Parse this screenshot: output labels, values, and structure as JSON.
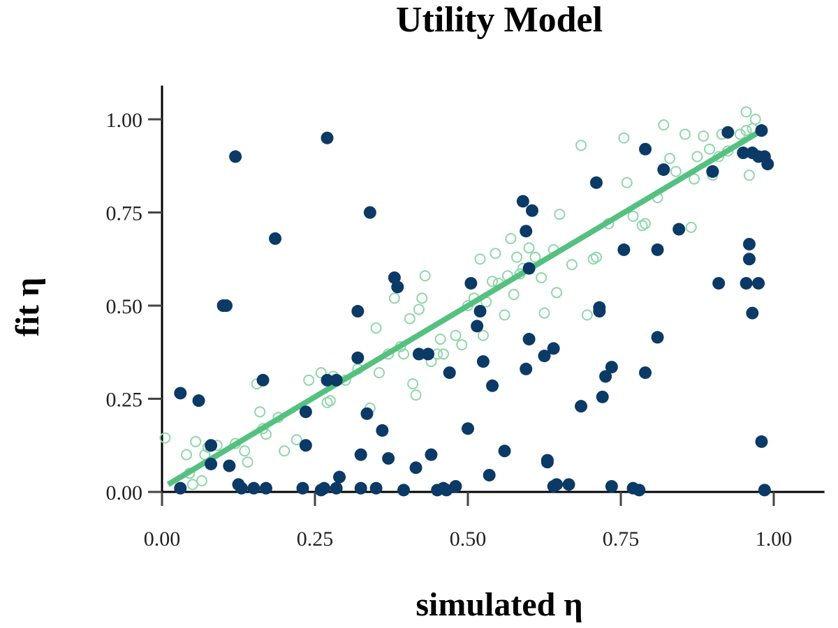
{
  "chart_data": {
    "type": "scatter",
    "title": "Utility Model",
    "xlabel": "simulated η",
    "ylabel": "fit η",
    "xlim": [
      0,
      1.1
    ],
    "ylim": [
      0,
      1.1
    ],
    "xticks": [
      0.0,
      0.25,
      0.5,
      0.75,
      1.0
    ],
    "yticks": [
      0.0,
      0.25,
      0.5,
      0.75,
      1.0
    ],
    "xtick_labels": [
      "0.00",
      "0.25",
      "0.50",
      "0.75",
      "1.00"
    ],
    "ytick_labels": [
      "0.00",
      "0.25",
      "0.50",
      "0.75",
      "1.00"
    ],
    "grid": false,
    "colors": {
      "filled": "#0b3a66",
      "hollow": "#8fd6aa",
      "fit_line": "#55c080",
      "axis": "#000000"
    },
    "fit_line": {
      "x": [
        0.01,
        0.975
      ],
      "y": [
        0.02,
        0.965
      ]
    },
    "series": [
      {
        "marker": "filled",
        "x": [
          0.03,
          0.03,
          0.06,
          0.08,
          0.08,
          0.11,
          0.1,
          0.105,
          0.12,
          0.125,
          0.13,
          0.15,
          0.17,
          0.165,
          0.185,
          0.23,
          0.235,
          0.235,
          0.26,
          0.265,
          0.27,
          0.27,
          0.285,
          0.29,
          0.285,
          0.32,
          0.32,
          0.325,
          0.335,
          0.325,
          0.34,
          0.35,
          0.36,
          0.37,
          0.38,
          0.385,
          0.395,
          0.415,
          0.42,
          0.435,
          0.44,
          0.45,
          0.46,
          0.465,
          0.47,
          0.48,
          0.5,
          0.505,
          0.515,
          0.52,
          0.525,
          0.535,
          0.54,
          0.56,
          0.59,
          0.595,
          0.595,
          0.6,
          0.605,
          0.6,
          0.625,
          0.63,
          0.63,
          0.64,
          0.64,
          0.645,
          0.665,
          0.685,
          0.71,
          0.715,
          0.715,
          0.72,
          0.725,
          0.735,
          0.735,
          0.755,
          0.77,
          0.78,
          0.79,
          0.79,
          0.81,
          0.81,
          0.82,
          0.845,
          0.9,
          0.9,
          0.91,
          0.925,
          0.95,
          0.955,
          0.96,
          0.96,
          0.965,
          0.965,
          0.975,
          0.975,
          0.98,
          0.98,
          0.985,
          0.985,
          0.99
        ],
        "y": [
          0.265,
          0.01,
          0.245,
          0.125,
          0.075,
          0.07,
          0.5,
          0.5,
          0.9,
          0.02,
          0.01,
          0.01,
          0.01,
          0.3,
          0.68,
          0.01,
          0.215,
          0.125,
          0.005,
          0.01,
          0.95,
          0.3,
          0.3,
          0.04,
          0.01,
          0.36,
          0.485,
          0.1,
          0.21,
          0.01,
          0.75,
          0.01,
          0.165,
          0.09,
          0.575,
          0.55,
          0.005,
          0.065,
          0.37,
          0.37,
          0.1,
          0.005,
          0.01,
          0.005,
          0.32,
          0.015,
          0.17,
          0.56,
          0.445,
          0.485,
          0.35,
          0.045,
          0.285,
          0.11,
          0.78,
          0.7,
          0.33,
          0.41,
          0.755,
          0.6,
          0.365,
          0.08,
          0.085,
          0.385,
          0.015,
          0.02,
          0.02,
          0.23,
          0.83,
          0.485,
          0.495,
          0.255,
          0.31,
          0.015,
          0.335,
          0.65,
          0.01,
          0.005,
          0.32,
          0.92,
          0.65,
          0.415,
          0.865,
          0.705,
          0.86,
          0.86,
          0.56,
          0.965,
          0.91,
          0.56,
          0.625,
          0.665,
          0.48,
          0.91,
          0.56,
          0.9,
          0.97,
          0.135,
          0.005,
          0.9,
          0.88
        ]
      },
      {
        "marker": "hollow",
        "x": [
          0.005,
          0.04,
          0.045,
          0.05,
          0.055,
          0.065,
          0.07,
          0.075,
          0.09,
          0.12,
          0.135,
          0.14,
          0.155,
          0.16,
          0.165,
          0.17,
          0.19,
          0.2,
          0.22,
          0.24,
          0.26,
          0.27,
          0.275,
          0.28,
          0.3,
          0.32,
          0.34,
          0.35,
          0.355,
          0.37,
          0.38,
          0.39,
          0.395,
          0.405,
          0.41,
          0.415,
          0.42,
          0.425,
          0.43,
          0.44,
          0.45,
          0.455,
          0.46,
          0.48,
          0.49,
          0.5,
          0.51,
          0.52,
          0.525,
          0.53,
          0.54,
          0.545,
          0.55,
          0.56,
          0.565,
          0.57,
          0.575,
          0.58,
          0.585,
          0.59,
          0.6,
          0.61,
          0.62,
          0.625,
          0.64,
          0.645,
          0.65,
          0.67,
          0.685,
          0.695,
          0.705,
          0.71,
          0.73,
          0.755,
          0.76,
          0.77,
          0.785,
          0.79,
          0.81,
          0.82,
          0.83,
          0.84,
          0.855,
          0.865,
          0.87,
          0.875,
          0.885,
          0.895,
          0.9,
          0.91,
          0.915,
          0.925,
          0.945,
          0.955,
          0.955,
          0.96,
          0.965,
          0.97
        ],
        "y": [
          0.145,
          0.1,
          0.05,
          0.02,
          0.135,
          0.03,
          0.1,
          0.12,
          0.125,
          0.13,
          0.11,
          0.08,
          0.29,
          0.215,
          0.17,
          0.155,
          0.2,
          0.11,
          0.14,
          0.3,
          0.32,
          0.24,
          0.245,
          0.31,
          0.3,
          0.33,
          0.225,
          0.44,
          0.32,
          0.37,
          0.52,
          0.39,
          0.37,
          0.465,
          0.29,
          0.26,
          0.49,
          0.52,
          0.58,
          0.35,
          0.37,
          0.41,
          0.37,
          0.42,
          0.395,
          0.5,
          0.52,
          0.625,
          0.42,
          0.51,
          0.565,
          0.64,
          0.56,
          0.475,
          0.58,
          0.68,
          0.53,
          0.63,
          0.585,
          0.6,
          0.655,
          0.63,
          0.575,
          0.48,
          0.65,
          0.535,
          0.745,
          0.61,
          0.93,
          0.475,
          0.625,
          0.63,
          0.72,
          0.95,
          0.83,
          0.74,
          0.715,
          0.72,
          0.79,
          0.985,
          0.895,
          0.86,
          0.96,
          0.71,
          0.84,
          0.9,
          0.955,
          0.92,
          0.85,
          0.9,
          0.96,
          0.915,
          0.96,
          1.02,
          0.97,
          0.85,
          0.975,
          1.0
        ]
      }
    ]
  }
}
